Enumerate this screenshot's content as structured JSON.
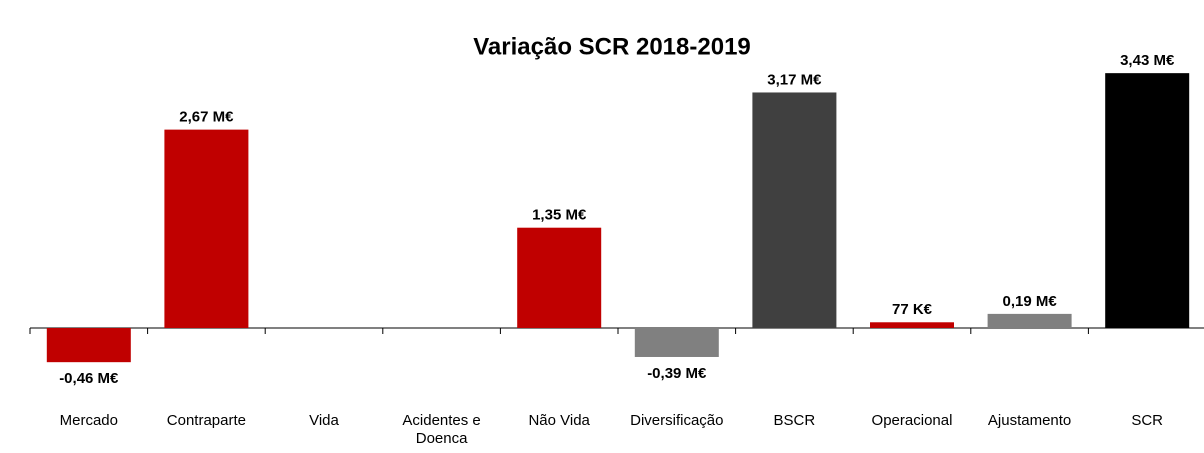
{
  "chart_data": {
    "type": "bar",
    "title": "Variação SCR 2018-2019",
    "categories": [
      "Mercado",
      "Contraparte",
      "Vida",
      "Acidentes e Doenca",
      "Não Vida",
      "Diversificação",
      "BSCR",
      "Operacional",
      "Ajustamento",
      "SCR"
    ],
    "values": [
      -0.46,
      2.67,
      null,
      null,
      1.35,
      -0.39,
      3.17,
      0.077,
      0.19,
      3.43
    ],
    "value_labels": [
      "-0,46 M€",
      "2,67 M€",
      null,
      null,
      "1,35 M€",
      "-0,39 M€",
      "3,17 M€",
      "77 K€",
      "0,19 M€",
      "3,43 M€"
    ],
    "colors": [
      "#c00000",
      "#c00000",
      "#c00000",
      "#c00000",
      "#c00000",
      "#808080",
      "#404040",
      "#c00000",
      "#808080",
      "#000000"
    ]
  }
}
